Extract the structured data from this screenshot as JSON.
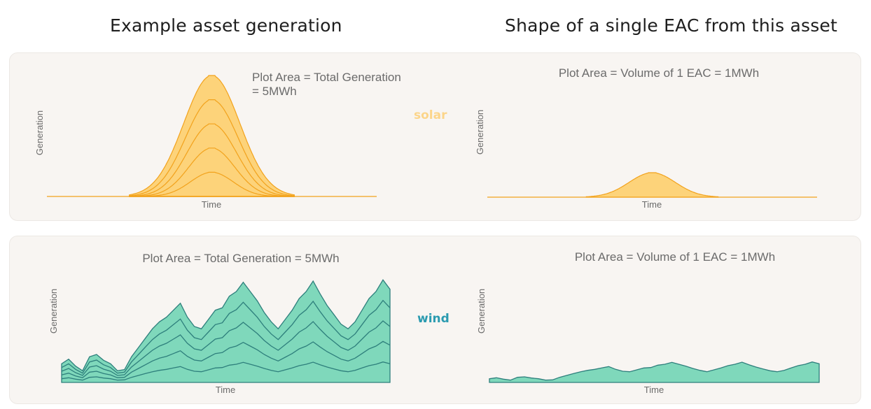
{
  "titles": {
    "left": "Example asset generation",
    "right": "Shape of a single EAC from this asset"
  },
  "colors": {
    "solar_fill": "#fdd37a",
    "solar_line": "#f2a21c",
    "solar_label": "#fcd58a",
    "wind_fill": "#7fd8bb",
    "wind_line": "#2e7f7c",
    "wind_label": "#2b9bb0",
    "card_bg": "#f8f5f2"
  },
  "rows": {
    "solar": {
      "label": "solar"
    },
    "wind": {
      "label": "wind"
    }
  },
  "chart_data": [
    {
      "id": "solar-total",
      "type": "area",
      "stacked": true,
      "title": "Plot Area = Total Generation",
      "title_line2": "= 5MWh",
      "xlabel": "Time",
      "ylabel": "Generation",
      "total_mwh": 5,
      "layers": 5,
      "profile": "gaussian",
      "profile_x": [
        0,
        0.26,
        0.28,
        0.3,
        0.32,
        0.34,
        0.36,
        0.38,
        0.4,
        0.42,
        0.44,
        0.46,
        0.48,
        0.5,
        0.52,
        0.54,
        0.56,
        0.58,
        0.6,
        0.62,
        0.64,
        0.66,
        0.68,
        0.7,
        0.74,
        1
      ],
      "profile_y": [
        0,
        0,
        0.01,
        0.03,
        0.07,
        0.14,
        0.25,
        0.4,
        0.57,
        0.74,
        0.88,
        0.97,
        1.0,
        1.0,
        0.97,
        0.88,
        0.74,
        0.57,
        0.4,
        0.25,
        0.14,
        0.07,
        0.03,
        0.01,
        0,
        0
      ]
    },
    {
      "id": "solar-eac",
      "type": "area",
      "title": "Plot Area = Volume of 1 EAC = 1MWh",
      "xlabel": "Time",
      "ylabel": "Generation",
      "volume_mwh": 1,
      "layers": 1,
      "profile": "gaussian"
    },
    {
      "id": "wind-total",
      "type": "area",
      "stacked": true,
      "title": "Plot Area = Total Generation = 5MWh",
      "xlabel": "Time",
      "ylabel": "Generation",
      "total_mwh": 5,
      "layers": 5,
      "profile_y": [
        16,
        20,
        14,
        10,
        22,
        24,
        19,
        16,
        10,
        11,
        22,
        30,
        38,
        46,
        52,
        56,
        62,
        68,
        56,
        48,
        46,
        54,
        62,
        64,
        74,
        78,
        86,
        78,
        70,
        60,
        52,
        46,
        54,
        62,
        72,
        78,
        87,
        76,
        66,
        58,
        50,
        46,
        52,
        62,
        72,
        78,
        88,
        80
      ]
    },
    {
      "id": "wind-eac",
      "type": "area",
      "title": "Plot Area = Volume of 1 EAC = 1MWh",
      "xlabel": "Time",
      "ylabel": "Generation",
      "volume_mwh": 1,
      "layers": 1
    }
  ]
}
